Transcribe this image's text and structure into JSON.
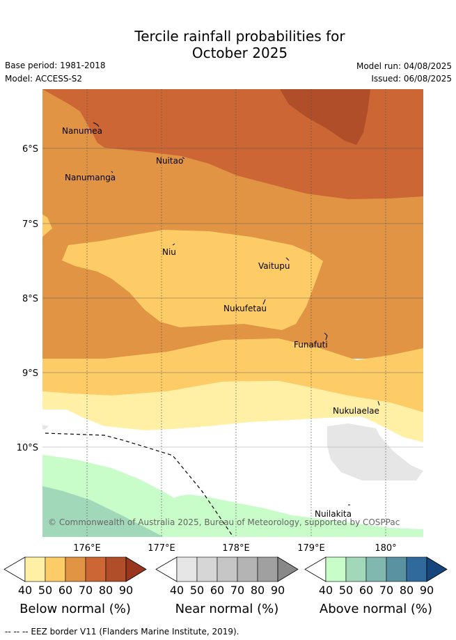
{
  "title": {
    "line1": "Tercile rainfall probabilities for",
    "line2": "October 2025"
  },
  "meta": {
    "base_period": "Base period: 1981-2018",
    "model": "Model: ACCESS-S2",
    "model_run": "Model run: 04/08/2025",
    "issued": "Issued: 06/08/2025"
  },
  "map": {
    "lat_labels": [
      "6°S",
      "7°S",
      "8°S",
      "9°S",
      "10°S"
    ],
    "lon_labels": [
      "176°E",
      "177°E",
      "178°E",
      "179°E",
      "180°"
    ],
    "places": [
      "Nanumea",
      "Nuitao",
      "Nanumanga",
      "Niu",
      "Vaitupu",
      "Nukufetau",
      "Funafuti",
      "Nukulaelae",
      "Nuilakita"
    ],
    "copyright": "© Commonwealth of Australia 2025, Bureau of Meteorology, supported by COSPPac"
  },
  "colorbars": {
    "ticks": [
      "40",
      "50",
      "60",
      "70",
      "80",
      "90"
    ],
    "below": {
      "title": "Below normal (%)",
      "colors": [
        "#fff0a6",
        "#fecc66",
        "#e09444",
        "#cc6634",
        "#b04e2a",
        "#9a3620"
      ]
    },
    "near": {
      "title": "Near normal (%)",
      "colors": [
        "#e6e6e6",
        "#d6d6d6",
        "#c6c6c6",
        "#b4b4b4",
        "#a0a0a0",
        "#888888"
      ]
    },
    "above": {
      "title": "Above normal (%)",
      "colors": [
        "#c8fcc8",
        "#a2d8ba",
        "#80b8b0",
        "#5a92a2",
        "#306a9c",
        "#15457c"
      ]
    }
  },
  "footer": {
    "eez_text": "--  --  -- EEZ border V11 (Flanders Marine Institute, 2019)."
  }
}
